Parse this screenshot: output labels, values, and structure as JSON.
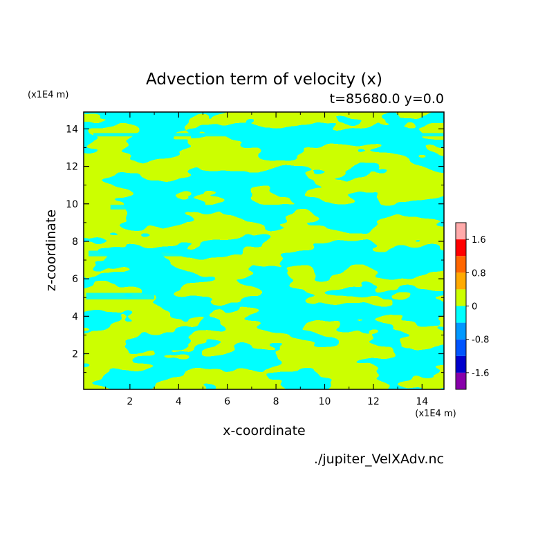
{
  "chart_data": {
    "type": "heatmap",
    "title": "Advection term of velocity (x)",
    "subtitle": "t=85680.0 y=0.0",
    "xlabel": "x-coordinate",
    "ylabel": "z-coordinate",
    "x_unit": "(x1E4 m)",
    "y_unit": "(x1E4 m)",
    "source_file": "./jupiter_VelXAdv.nc",
    "xlim": [
      0.1,
      14.9
    ],
    "ylim": [
      0.1,
      14.9
    ],
    "x_ticks": [
      2,
      4,
      6,
      8,
      10,
      12,
      14
    ],
    "y_ticks": [
      2,
      4,
      6,
      8,
      10,
      12,
      14
    ],
    "x_tick_labels": [
      "2",
      "4",
      "6",
      "8",
      "10",
      "12",
      "14"
    ],
    "y_tick_labels": [
      "2",
      "4",
      "6",
      "8",
      "10",
      "12",
      "14"
    ],
    "colorbar": {
      "levels": [
        -2.0,
        -1.6,
        -1.2,
        -0.8,
        -0.4,
        0,
        0.4,
        0.8,
        1.2,
        1.6,
        2.0
      ],
      "colors": [
        "#8800aa",
        "#0000cc",
        "#0055ff",
        "#0099ff",
        "#00ffff",
        "#ccff00",
        "#ffaa00",
        "#ff6600",
        "#ff0000",
        "#ffaaaa"
      ],
      "labels": [
        "1.6",
        "0.8",
        "0",
        "-0.8",
        "-1.6"
      ],
      "label_values": [
        1.6,
        0.8,
        0,
        -0.8,
        -1.6
      ]
    },
    "field": {
      "description_values": "field values are negative (-0.4..0) in cyan regions and positive (0..0.4) in yellow-green regions",
      "visible_range": [
        -0.4,
        0.4
      ]
    }
  }
}
